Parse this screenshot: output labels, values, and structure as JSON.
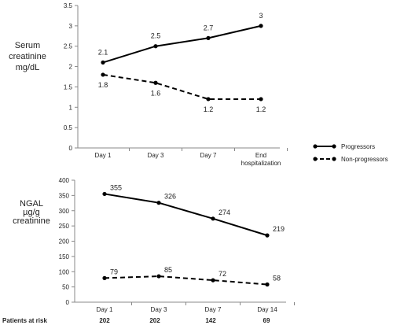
{
  "chart_data": [
    {
      "type": "line",
      "ylabel_lines": [
        "Serum",
        "creatinine",
        "mg/dL"
      ],
      "categories": [
        [
          "Day 1"
        ],
        [
          "Day 3"
        ],
        [
          "Day 7"
        ],
        [
          "End",
          "hospitalization"
        ]
      ],
      "ylim": [
        0,
        3.5
      ],
      "yticks": [
        "0",
        "0.5",
        "1",
        "1.5",
        "2",
        "2.5",
        "3",
        "3.5"
      ],
      "ytick_values": [
        0,
        0.5,
        1,
        1.5,
        2,
        2.5,
        3,
        3.5
      ],
      "series": [
        {
          "name": "Progressors",
          "style": "solid",
          "values": [
            2.1,
            2.5,
            2.7,
            3
          ],
          "labels": [
            "2.1",
            "2.5",
            "2.7",
            "3"
          ]
        },
        {
          "name": "Non-progressors",
          "style": "dashed",
          "values": [
            1.8,
            1.6,
            1.2,
            1.2
          ],
          "labels": [
            "1.8",
            "1.6",
            "1.2",
            "1.2"
          ]
        }
      ]
    },
    {
      "type": "line",
      "ylabel_lines": [
        "NGAL",
        "µg/g",
        "creatinine"
      ],
      "categories": [
        [
          "Day 1"
        ],
        [
          "Day 3"
        ],
        [
          "Day 7"
        ],
        [
          "Day 14"
        ]
      ],
      "ylim": [
        0,
        400
      ],
      "yticks": [
        "0",
        "50",
        "100",
        "150",
        "200",
        "250",
        "300",
        "350",
        "400"
      ],
      "ytick_values": [
        0,
        50,
        100,
        150,
        200,
        250,
        300,
        350,
        400
      ],
      "series": [
        {
          "name": "Progressors",
          "style": "solid",
          "values": [
            355,
            326,
            274,
            219
          ],
          "labels": [
            "355",
            "326",
            "274",
            "219"
          ]
        },
        {
          "name": "Non-progressors",
          "style": "dashed",
          "values": [
            79,
            85,
            72,
            58
          ],
          "labels": [
            "79",
            "85",
            "72",
            "58"
          ]
        }
      ]
    }
  ],
  "legend": {
    "items": [
      {
        "label": "Progressors",
        "style": "solid"
      },
      {
        "label": "Non-progressors",
        "style": "dashed"
      }
    ]
  },
  "patients_at_risk": {
    "label": "Patients at risk",
    "values": [
      "202",
      "202",
      "142",
      "69"
    ]
  }
}
